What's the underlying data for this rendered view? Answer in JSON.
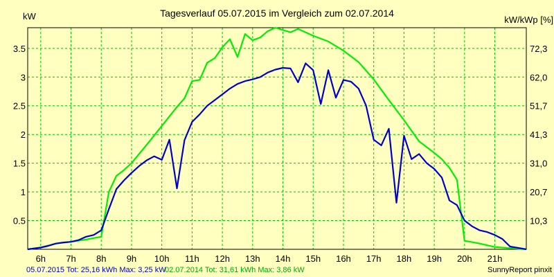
{
  "chart_data": {
    "type": "line",
    "title": "Tagesverlauf 05.07.2015 im Vergleich zum 02.07.2014",
    "ylabel_left": "kW",
    "ylabel_right": "kW/kWp [%]",
    "x_ticks": [
      "6h",
      "7h",
      "8h",
      "9h",
      "10h",
      "11h",
      "12h",
      "13h",
      "14h",
      "15h",
      "16h",
      "17h",
      "18h",
      "19h",
      "20h",
      "21h"
    ],
    "y_ticks": [
      "0.5",
      "1",
      "1.5",
      "2",
      "2.5",
      "3",
      "3.5"
    ],
    "y2_ticks": [
      "10,3",
      "20,7",
      "31,0",
      "41,3",
      "51,7",
      "62,0",
      "72,3"
    ],
    "xlim": [
      5.57,
      22.04
    ],
    "ylim": [
      0,
      3.86
    ],
    "grid": true,
    "background": "#ffffc0",
    "grid_color": "#00c000",
    "series": [
      {
        "name": "05.07.2015",
        "color": "#0000cc",
        "x": [
          5.57,
          6.0,
          6.25,
          6.5,
          6.75,
          7.0,
          7.25,
          7.5,
          7.75,
          8.0,
          8.25,
          8.5,
          8.75,
          9.0,
          9.25,
          9.5,
          9.75,
          10.0,
          10.25,
          10.5,
          10.75,
          11.0,
          11.25,
          11.5,
          11.75,
          12.0,
          12.25,
          12.5,
          12.75,
          13.0,
          13.25,
          13.5,
          13.75,
          14.0,
          14.25,
          14.5,
          14.75,
          15.0,
          15.25,
          15.5,
          15.75,
          16.0,
          16.25,
          16.5,
          16.75,
          17.0,
          17.25,
          17.5,
          17.75,
          18.0,
          18.25,
          18.5,
          18.75,
          19.0,
          19.25,
          19.5,
          19.75,
          20.0,
          20.25,
          20.5,
          20.75,
          21.0,
          21.25,
          21.5,
          22.04
        ],
        "y": [
          0,
          0.03,
          0.06,
          0.1,
          0.12,
          0.13,
          0.16,
          0.22,
          0.25,
          0.33,
          0.7,
          1.05,
          1.2,
          1.33,
          1.45,
          1.55,
          1.62,
          1.56,
          1.91,
          1.06,
          1.9,
          2.22,
          2.35,
          2.5,
          2.6,
          2.7,
          2.8,
          2.88,
          2.93,
          2.96,
          3.0,
          3.08,
          3.13,
          3.16,
          3.15,
          2.91,
          3.24,
          3.12,
          2.53,
          3.12,
          2.64,
          2.95,
          2.92,
          2.8,
          2.5,
          1.91,
          1.81,
          2.1,
          0.81,
          1.98,
          1.57,
          1.66,
          1.5,
          1.4,
          1.25,
          0.85,
          0.77,
          0.5,
          0.4,
          0.33,
          0.3,
          0.25,
          0.18,
          0.05,
          0
        ]
      },
      {
        "name": "02.07.2014",
        "color": "#00ee00",
        "x": [
          5.57,
          6.0,
          6.5,
          7.0,
          7.5,
          8.0,
          8.25,
          8.5,
          8.75,
          9.0,
          9.5,
          10.0,
          10.5,
          10.75,
          11.0,
          11.25,
          11.5,
          11.75,
          12.0,
          12.25,
          12.5,
          12.75,
          13.0,
          13.25,
          13.5,
          13.75,
          14.0,
          14.25,
          14.5,
          15.0,
          15.5,
          16.0,
          16.5,
          17.0,
          17.5,
          18.0,
          18.5,
          19.0,
          19.25,
          19.5,
          19.75,
          20.0,
          20.5,
          21.0,
          21.5,
          22.04
        ],
        "y": [
          0,
          0.03,
          0.1,
          0.13,
          0.17,
          0.22,
          1.0,
          1.28,
          1.38,
          1.5,
          1.82,
          2.15,
          2.48,
          2.63,
          2.93,
          2.95,
          3.25,
          3.33,
          3.52,
          3.66,
          3.35,
          3.75,
          3.64,
          3.69,
          3.8,
          3.86,
          3.82,
          3.78,
          3.84,
          3.72,
          3.62,
          3.46,
          3.26,
          2.96,
          2.6,
          2.25,
          1.88,
          1.68,
          1.57,
          1.42,
          1.21,
          0.15,
          0.1,
          0.04,
          0.02,
          0
        ]
      }
    ]
  },
  "footer": {
    "left_blue": "05.07.2015 Tot: 25,16 kWh Max: 3,25 kW",
    "left_green": "02.07.2014 Tot: 31,61 kWh Max: 3,86 kW",
    "right": "SunnyReport pinxit"
  }
}
